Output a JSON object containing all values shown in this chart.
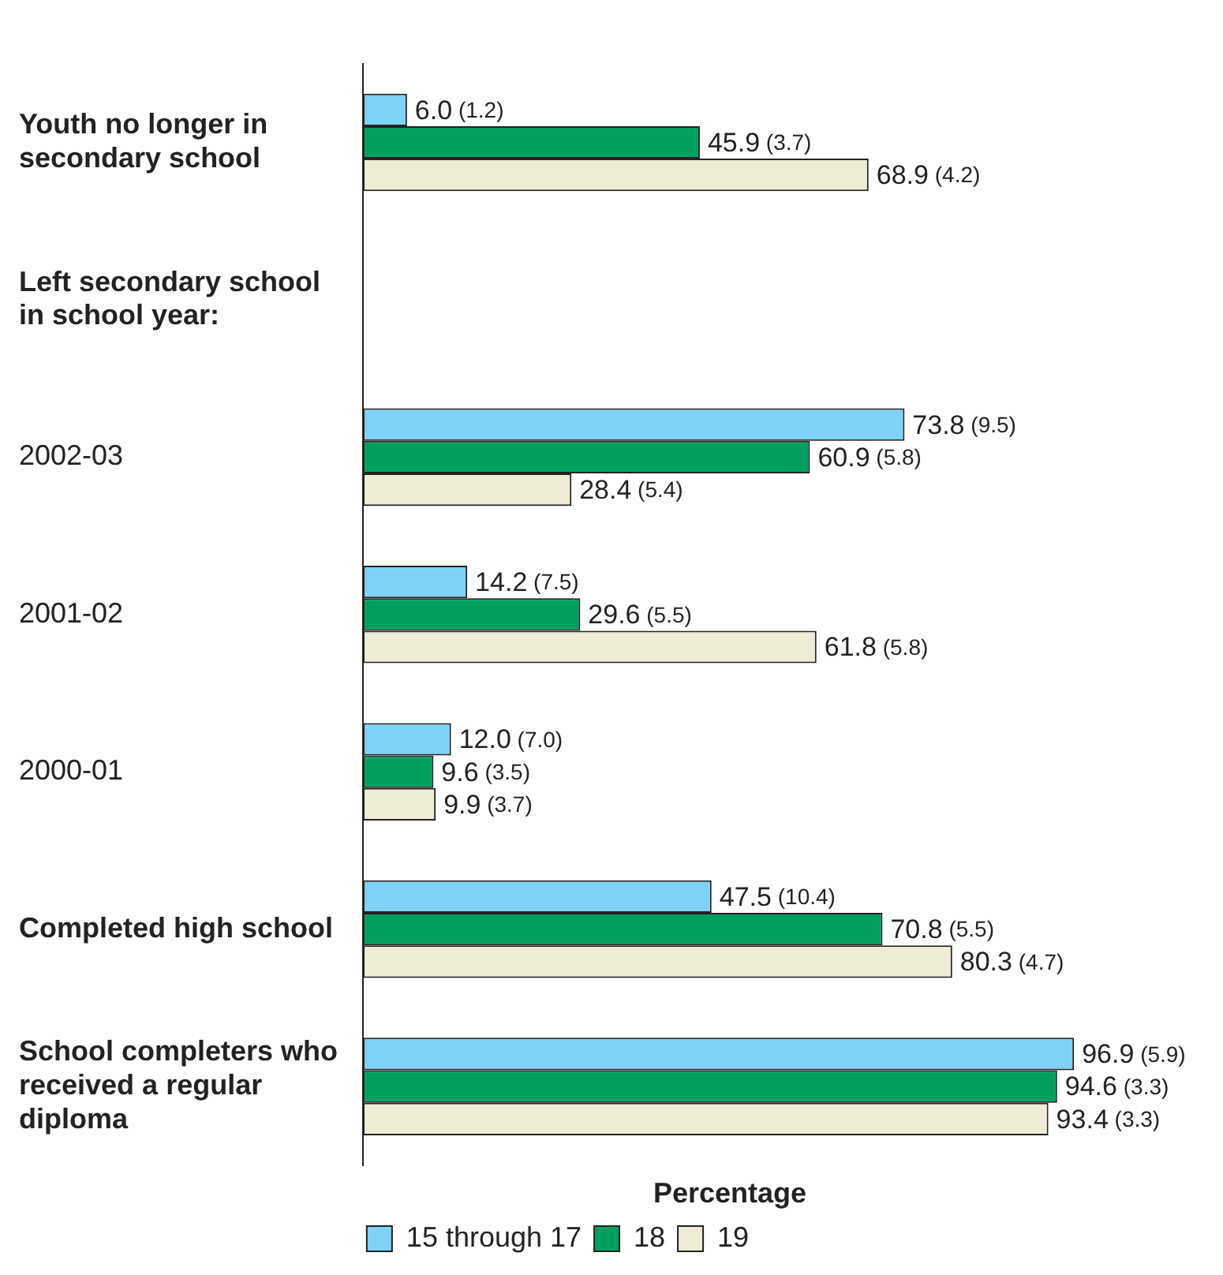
{
  "chart_data": {
    "type": "bar",
    "orientation": "horizontal",
    "xlabel": "Percentage",
    "annotations": [
      "Left secondary school in school year:"
    ],
    "categories": [
      "Youth no longer in secondary school",
      null,
      "2002-03",
      "2001-02",
      "2000-01",
      "Completed high school",
      "School completers who received a regular diploma"
    ],
    "series": [
      {
        "name": "15 through 17",
        "color": "#7fd1f6",
        "values": [
          6.0,
          null,
          73.8,
          14.2,
          12.0,
          47.5,
          96.9
        ],
        "value_labels": [
          "6.0 (1.2)",
          null,
          "73.8 (9.5)",
          "14.2 (7.5)",
          "12.0 (7.0)",
          "47.5 (10.4)",
          "96.9 (5.9)"
        ]
      },
      {
        "name": "18",
        "color": "#00a15f",
        "values": [
          45.9,
          null,
          60.9,
          29.6,
          9.6,
          70.8,
          94.6
        ],
        "value_labels": [
          "45.9 (3.7)",
          null,
          "60.9 (5.8)",
          "29.6 (5.5)",
          "9.6 (3.5)",
          "70.8 (5.5)",
          "94.6 (3.3)"
        ]
      },
      {
        "name": "19",
        "color": "#eeecd4",
        "values": [
          68.9,
          null,
          28.4,
          61.8,
          9.9,
          80.3,
          93.4
        ],
        "value_labels": [
          "68.9 (4.2)",
          null,
          "28.4 (5.4)",
          "61.8 (5.8)",
          "9.9 (3.7)",
          "80.3 (4.7)",
          "93.4 (3.3)"
        ]
      }
    ],
    "legend": "bottom",
    "grid": false,
    "tick_labels": "y"
  }
}
